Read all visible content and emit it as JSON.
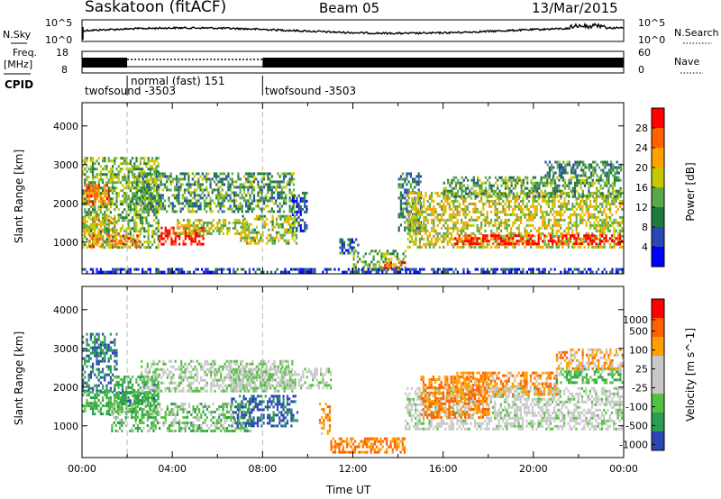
{
  "header": {
    "station": "Saskatoon (fitACF)",
    "beam": "Beam 05",
    "date": "13/Mar/2015"
  },
  "top_panels": {
    "nsky_label": "N.Sky",
    "nsky_ticks": [
      "10^5",
      "10^0"
    ],
    "nsearch_label": "N.Search",
    "nsearch_ticks": [
      "10^5",
      "10^0"
    ],
    "freq_label_1": "Freq.",
    "freq_label_2": "[MHz]",
    "freq_ticks": [
      "18",
      "8"
    ],
    "nave_label": "Nave",
    "nave_ticks": [
      "60",
      "0"
    ],
    "cpid_label": "CPID",
    "cpid_segments": [
      {
        "label": "twofsound -3503",
        "start_h": 0
      },
      {
        "label": "normal (fast) 151",
        "start_h": 2
      },
      {
        "label": "twofsound -3503",
        "start_h": 8
      }
    ]
  },
  "chart_data": [
    {
      "type": "heatmap",
      "title": "",
      "quantity": "Power",
      "ylabel": "Slant Range [km]",
      "xlabel": "Time UT",
      "x_ticks": [
        "00:00",
        "04:00",
        "08:00",
        "12:00",
        "16:00",
        "20:00",
        "00:00"
      ],
      "xlim_hours": [
        0,
        24
      ],
      "ylim_km": [
        180,
        4600
      ],
      "y_ticks": [
        1000,
        2000,
        3000,
        4000
      ],
      "colorbar_label": "Power [dB]",
      "colorbar_ticks": [
        "28",
        "24",
        "20",
        "16",
        "12",
        "8",
        "4"
      ],
      "colorbar_colors": [
        "#0000ff",
        "#2a46b4",
        "#1f7a3c",
        "#5aa84a",
        "#c8c800",
        "#ffa000",
        "#ff6000",
        "#ff0000"
      ],
      "regions": [
        {
          "h0": 0.0,
          "h1": 3.4,
          "r0": 850,
          "r1": 3200,
          "level": 0.45
        },
        {
          "h0": 0.1,
          "h1": 1.2,
          "r0": 2000,
          "r1": 2500,
          "level": 0.8
        },
        {
          "h0": 0.0,
          "h1": 1.5,
          "r0": 1200,
          "r1": 1700,
          "level": 0.6
        },
        {
          "h0": 0.3,
          "h1": 2.5,
          "r0": 900,
          "r1": 1200,
          "level": 0.75
        },
        {
          "h0": 3.4,
          "h1": 5.4,
          "r0": 950,
          "r1": 1400,
          "level": 0.95
        },
        {
          "h0": 4.2,
          "h1": 7.2,
          "r0": 1200,
          "r1": 1600,
          "level": 0.55
        },
        {
          "h0": 2.4,
          "h1": 9.4,
          "r0": 1800,
          "r1": 2800,
          "level": 0.38
        },
        {
          "h0": 7.0,
          "h1": 9.5,
          "r0": 950,
          "r1": 1700,
          "level": 0.5
        },
        {
          "h0": 9.3,
          "h1": 10.0,
          "r0": 1300,
          "r1": 2300,
          "level": 0.2
        },
        {
          "h0": 11.4,
          "h1": 12.2,
          "r0": 700,
          "r1": 1100,
          "level": 0.25
        },
        {
          "h0": 12.0,
          "h1": 14.3,
          "r0": 300,
          "r1": 800,
          "level": 0.45
        },
        {
          "h0": 13.3,
          "h1": 14.3,
          "r0": 350,
          "r1": 500,
          "level": 0.92
        },
        {
          "h0": 14.0,
          "h1": 15.0,
          "r0": 1300,
          "r1": 2800,
          "level": 0.3
        },
        {
          "h0": 14.4,
          "h1": 23.9,
          "r0": 900,
          "r1": 2300,
          "level": 0.55
        },
        {
          "h0": 16.5,
          "h1": 23.9,
          "r0": 950,
          "r1": 1200,
          "level": 0.97
        },
        {
          "h0": 16.0,
          "h1": 23.9,
          "r0": 2200,
          "r1": 2700,
          "level": 0.4
        },
        {
          "h0": 20.5,
          "h1": 23.9,
          "r0": 2700,
          "r1": 3100,
          "level": 0.35
        },
        {
          "h0": 0.0,
          "h1": 23.9,
          "r0": 200,
          "r1": 330,
          "level": 0.15
        }
      ]
    },
    {
      "type": "heatmap",
      "title": "",
      "quantity": "Velocity",
      "ylabel": "Slant Range [km]",
      "xlabel": "Time UT",
      "x_ticks": [
        "00:00",
        "04:00",
        "08:00",
        "12:00",
        "16:00",
        "20:00",
        "00:00"
      ],
      "xlim_hours": [
        0,
        24
      ],
      "ylim_km": [
        180,
        4600
      ],
      "y_ticks": [
        1000,
        2000,
        3000,
        4000
      ],
      "colorbar_label": "Velocity [m s^-1]",
      "colorbar_ticks": [
        "1000",
        "500",
        "100",
        "25",
        "-25",
        "-100",
        "-500",
        "-1000"
      ],
      "colorbar_colors": [
        "#ff0000",
        "#ff6000",
        "#ffa000",
        "#c8c8c8",
        "#c8c8c8",
        "#55c040",
        "#2a9e50",
        "#2a46b4"
      ],
      "regions": [
        {
          "h0": 0.0,
          "h1": 1.5,
          "r0": 1900,
          "r1": 3400,
          "v": 0.7
        },
        {
          "h0": 0.0,
          "h1": 3.3,
          "r0": 1300,
          "r1": 1900,
          "v": 0.5
        },
        {
          "h0": 1.4,
          "h1": 3.4,
          "r0": 1600,
          "r1": 2300,
          "v": 0.55
        },
        {
          "h0": 1.2,
          "h1": 7.5,
          "r0": 900,
          "r1": 1600,
          "v": 0.3
        },
        {
          "h0": 6.6,
          "h1": 9.5,
          "r0": 1000,
          "r1": 1800,
          "v": 0.85
        },
        {
          "h0": 2.6,
          "h1": 9.3,
          "r0": 1900,
          "r1": 2700,
          "v": 0.15
        },
        {
          "h0": 6.5,
          "h1": 11.0,
          "r0": 2000,
          "r1": 2500,
          "v": 0.1
        },
        {
          "h0": 10.5,
          "h1": 11.0,
          "r0": 800,
          "r1": 1600,
          "v": -0.4
        },
        {
          "h0": 11.0,
          "h1": 14.3,
          "r0": 300,
          "r1": 700,
          "v": -0.5
        },
        {
          "h0": 14.3,
          "h1": 23.9,
          "r0": 900,
          "r1": 2000,
          "v": 0.05
        },
        {
          "h0": 15.0,
          "h1": 18.0,
          "r0": 1200,
          "r1": 2300,
          "v": -0.45
        },
        {
          "h0": 16.5,
          "h1": 21.0,
          "r0": 1800,
          "r1": 2400,
          "v": -0.35
        },
        {
          "h0": 21.0,
          "h1": 23.9,
          "r0": 2100,
          "r1": 2500,
          "v": 0.4
        },
        {
          "h0": 21.0,
          "h1": 23.9,
          "r0": 2500,
          "r1": 3000,
          "v": -0.3
        }
      ]
    }
  ]
}
